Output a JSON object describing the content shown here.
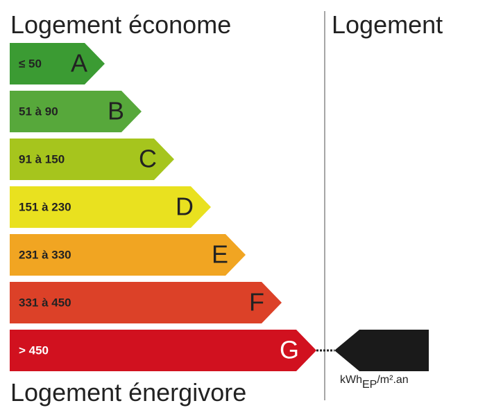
{
  "header": {
    "left_title": "Logement économe",
    "right_title": "Logement"
  },
  "classes": [
    {
      "range": "≤ 50",
      "letter": "A"
    },
    {
      "range": "51 à 90",
      "letter": "B"
    },
    {
      "range": "91 à 150",
      "letter": "C"
    },
    {
      "range": "151 à 230",
      "letter": "D"
    },
    {
      "range": "231 à 330",
      "letter": "E"
    },
    {
      "range": "331 à 450",
      "letter": "F"
    },
    {
      "range": "> 450",
      "letter": "G"
    }
  ],
  "footer": "Logement énergivore",
  "unit": {
    "base": "kWh",
    "sub": "EP",
    "suffix": "/m².an"
  }
}
